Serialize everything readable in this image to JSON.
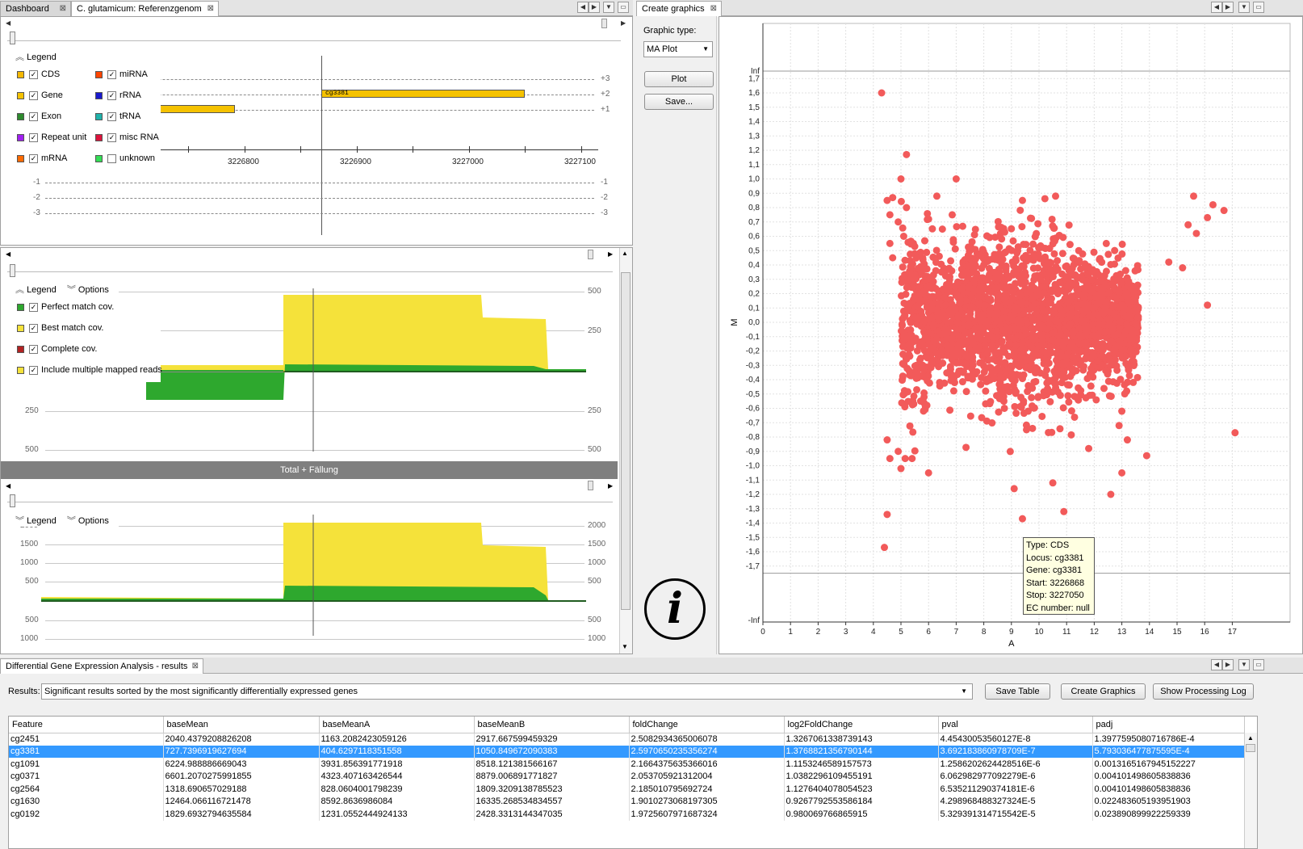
{
  "left_tabs": [
    {
      "label": "Dashboard"
    },
    {
      "label": "C. glutamicum: Referenzgenom"
    }
  ],
  "right_tabs": [
    {
      "label": "Create graphics"
    }
  ],
  "genome_view": {
    "legend_title": "Legend",
    "legend_items": [
      {
        "label": "CDS",
        "color": "#f5b800",
        "checked": true
      },
      {
        "label": "Gene",
        "color": "#f5c200",
        "checked": true
      },
      {
        "label": "Exon",
        "color": "#2e8b2e",
        "checked": true
      },
      {
        "label": "Repeat unit",
        "color": "#a020f0",
        "checked": true
      },
      {
        "label": "mRNA",
        "color": "#ff6a00",
        "checked": true
      },
      {
        "label": "miRNA",
        "color": "#ff4500",
        "checked": true
      },
      {
        "label": "rRNA",
        "color": "#1a1acd",
        "checked": true
      },
      {
        "label": "tRNA",
        "color": "#20b2aa",
        "checked": true
      },
      {
        "label": "misc RNA",
        "color": "#dc143c",
        "checked": true
      },
      {
        "label": "unknown",
        "color": "#33dd55",
        "checked": false
      }
    ],
    "positions": [
      "3226800",
      "3226900",
      "3227000",
      "3227100"
    ],
    "frames_pos": [
      "+3",
      "+2",
      "+1"
    ],
    "frames_neg": [
      "-1",
      "-2",
      "-3"
    ],
    "gene_label": "cg3381"
  },
  "coverage_view": {
    "legend_title": "Legend",
    "options_title": "Options",
    "legend_items": [
      {
        "label": "Perfect match cov.",
        "color": "#2ea82e",
        "checked": true
      },
      {
        "label": "Best match cov.",
        "color": "#f5e23a",
        "checked": true
      },
      {
        "label": "Complete cov.",
        "color": "#b22222",
        "checked": true
      },
      {
        "label": "Include multiple mapped reads",
        "color": "#f5e23a",
        "checked": true
      }
    ],
    "ticks_top": [
      "500",
      "250"
    ],
    "ticks_bottom": [
      "250",
      "500"
    ]
  },
  "track_header": "Total + Fällung",
  "coverage_view2": {
    "legend_title": "Legend",
    "options_title": "Options",
    "ticks_top": [
      "2000",
      "1500",
      "1000",
      "500"
    ],
    "ticks_bottom": [
      "500",
      "1000"
    ]
  },
  "graphics_panel": {
    "graphic_type_label": "Graphic type:",
    "graphic_type_value": "MA Plot",
    "plot_button": "Plot",
    "save_button": "Save...",
    "info_icon": "info-icon"
  },
  "chart_data": {
    "type": "scatter",
    "title": "",
    "xlabel": "A",
    "ylabel": "M",
    "xlim": [
      0,
      18
    ],
    "ylim": [
      -1.7,
      1.7
    ],
    "x_ticks": [
      "0",
      "1",
      "2",
      "3",
      "4",
      "5",
      "6",
      "7",
      "8",
      "9",
      "10",
      "11",
      "12",
      "13",
      "14",
      "15",
      "16",
      "17"
    ],
    "y_ticks": [
      "Inf",
      "1,7",
      "1,6",
      "1,5",
      "1,4",
      "1,3",
      "1,2",
      "1,1",
      "1,0",
      "0,9",
      "0,8",
      "0,7",
      "0,6",
      "0,5",
      "0,4",
      "0,3",
      "0,2",
      "0,1",
      "0,0",
      "-0,1",
      "-0,2",
      "-0,3",
      "-0,4",
      "-0,5",
      "-0,6",
      "-0,7",
      "-0,8",
      "-0,9",
      "-1,0",
      "-1,1",
      "-1,2",
      "-1,3",
      "-1,4",
      "-1,5",
      "-1,6",
      "-1,7",
      "-Inf"
    ],
    "point_color": "#f25a5a",
    "grid": true,
    "series": [
      {
        "x": [
          4.3,
          5.2,
          5.0,
          7.0,
          6.3,
          4.7,
          4.5,
          5.2,
          4.6,
          4.9,
          5.1,
          6.0,
          6.5,
          4.6,
          4.7,
          9.4,
          10.6,
          15.6,
          16.3,
          16.7,
          16.1,
          15.4,
          15.7,
          15.2,
          14.7,
          16.1,
          17.1,
          4.5,
          4.9,
          9.1,
          10.5,
          12.6,
          13.0,
          13.9,
          4.6,
          5.0,
          6.0,
          11.8,
          13.2,
          9.4,
          10.9,
          4.5,
          4.4,
          13.0,
          12.9
        ],
        "y": [
          1.6,
          1.17,
          1.0,
          1.0,
          0.88,
          0.87,
          0.85,
          0.8,
          0.75,
          0.7,
          0.6,
          0.72,
          0.65,
          0.55,
          0.45,
          0.85,
          0.88,
          0.88,
          0.82,
          0.78,
          0.73,
          0.68,
          0.62,
          0.38,
          0.42,
          0.12,
          -0.77,
          -0.82,
          -0.9,
          -1.16,
          -1.12,
          -1.2,
          -1.05,
          -0.93,
          -0.95,
          -1.02,
          -1.05,
          -0.88,
          -0.82,
          -1.37,
          -1.32,
          -1.34,
          -1.57,
          -0.62,
          -0.72
        ]
      }
    ],
    "tooltip": {
      "type": "Type: CDS",
      "locus": "Locus: cg3381",
      "gene": "Gene: cg3381",
      "start": "Start: 3226868",
      "stop": "Stop: 3227050",
      "ec": "EC number: null"
    }
  },
  "results_panel": {
    "tab_label": "Differential Gene Expression Analysis - results",
    "results_label": "Results:",
    "results_select": "Significant results sorted by the most significantly differentially expressed genes",
    "save_table": "Save Table",
    "create_graphics": "Create Graphics",
    "show_log": "Show Processing Log",
    "columns": [
      "Feature",
      "baseMean",
      "baseMeanA",
      "baseMeanB",
      "foldChange",
      "log2FoldChange",
      "pval",
      "padj"
    ],
    "rows": [
      [
        "cg2451",
        "2040.4379208826208",
        "1163.2082423059126",
        "2917.667599459329",
        "2.5082934365006078",
        "1.3267061338739143",
        "4.45430053560127E-8",
        "1.3977595080716786E-4"
      ],
      [
        "cg3381",
        "727.7396919627694",
        "404.6297118351558",
        "1050.849672090383",
        "2.5970650235356274",
        "1.3768821356790144",
        "3.692183860978709E-7",
        "5.793036477875595E-4"
      ],
      [
        "cg1091",
        "6224.988886669043",
        "3931.856391771918",
        "8518.121381566167",
        "2.1664375635366016",
        "1.1153246589157573",
        "1.2586202624428516E-6",
        "0.0013165167945152227"
      ],
      [
        "cg0371",
        "6601.2070275991855",
        "4323.407163426544",
        "8879.006891771827",
        "2.053705921312004",
        "1.0382296109455191",
        "6.062982977092279E-6",
        "0.004101498605838836"
      ],
      [
        "cg2564",
        "1318.690657029188",
        "828.0604001798239",
        "1809.3209138785523",
        "2.185010795692724",
        "1.1276404078054523",
        "6.535211290374181E-6",
        "0.004101498605838836"
      ],
      [
        "cg1630",
        "12464.066116721478",
        "8592.8636986084",
        "16335.268534834557",
        "1.9010273068197305",
        "0.9267792553586184",
        "4.298968488327324E-5",
        "0.022483605193951903"
      ],
      [
        "cg0192",
        "1829.6932794635584",
        "1231.0552444924133",
        "2428.3313144347035",
        "1.9725607971687324",
        "0.980069766865915",
        "5.329391314715542E-5",
        "0.023890899922259339"
      ]
    ],
    "selected_row": 1
  }
}
